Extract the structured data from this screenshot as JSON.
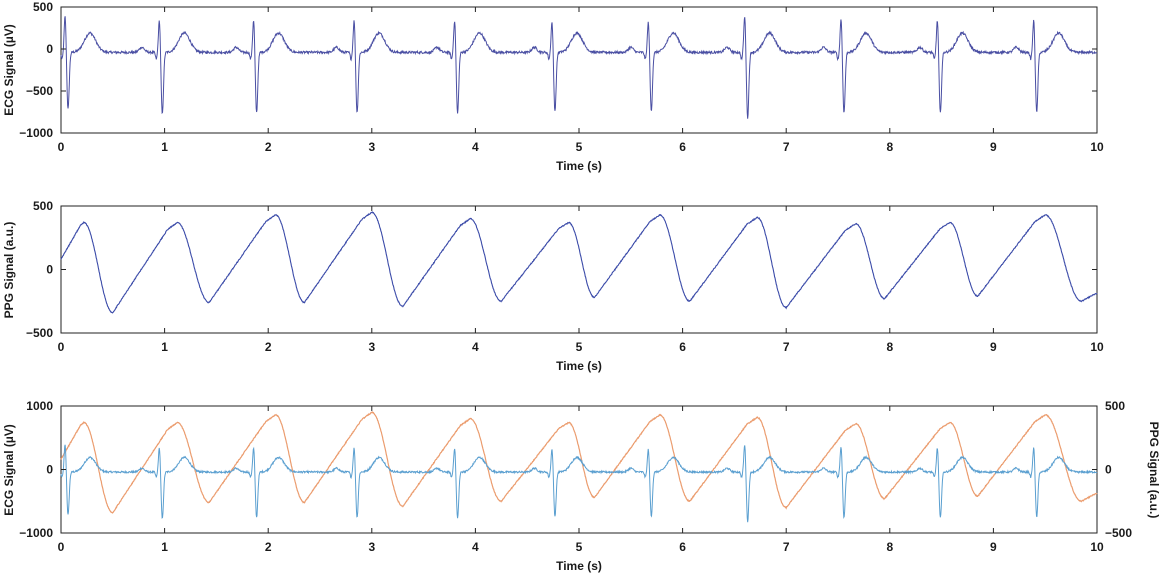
{
  "chart_data": [
    {
      "type": "line",
      "xlabel": "Time (s)",
      "ylabel": "ECG Signal (µV)",
      "xlim": [
        0,
        10
      ],
      "ylim": [
        -1000,
        500
      ],
      "xticks": [
        0,
        1,
        2,
        3,
        4,
        5,
        6,
        7,
        8,
        9,
        10
      ],
      "yticks": [
        500,
        0,
        -500,
        -1000
      ],
      "grid": false,
      "series": [
        {
          "color": "#4a4fa3",
          "r_peaks_s": [
            0.04,
            0.95,
            1.86,
            2.83,
            3.8,
            4.74,
            5.67,
            6.6,
            7.53,
            8.46,
            9.39
          ],
          "r_amplitude_uV": [
            450,
            400,
            400,
            400,
            400,
            380,
            380,
            450,
            420,
            400,
            400
          ],
          "s_amplitude_uV": [
            -680,
            -740,
            -720,
            -720,
            -730,
            -700,
            -700,
            -780,
            -720,
            -730,
            -720
          ],
          "t_wave_amplitude_uV": 230,
          "baseline_uV": -40
        }
      ]
    },
    {
      "type": "line",
      "xlabel": "Time (s)",
      "ylabel": "PPG Signal (a.u.)",
      "xlim": [
        0,
        10
      ],
      "ylim": [
        -500,
        500
      ],
      "xticks": [
        0,
        1,
        2,
        3,
        4,
        5,
        6,
        7,
        8,
        9,
        10
      ],
      "yticks": [
        500,
        0,
        -500
      ],
      "grid": false,
      "series": [
        {
          "color": "#3a4aa8",
          "peaks": [
            [
              0.22,
              370
            ],
            [
              1.12,
              370
            ],
            [
              2.07,
              430
            ],
            [
              3.0,
              450
            ],
            [
              3.95,
              400
            ],
            [
              4.9,
              370
            ],
            [
              5.78,
              430
            ],
            [
              6.72,
              410
            ],
            [
              7.67,
              360
            ],
            [
              8.58,
              370
            ],
            [
              9.5,
              430
            ]
          ],
          "troughs": [
            [
              0.5,
              -340
            ],
            [
              1.43,
              -260
            ],
            [
              2.35,
              -260
            ],
            [
              3.3,
              -290
            ],
            [
              4.25,
              -250
            ],
            [
              5.15,
              -220
            ],
            [
              6.07,
              -250
            ],
            [
              7.0,
              -300
            ],
            [
              7.95,
              -230
            ],
            [
              8.85,
              -210
            ],
            [
              9.85,
              -250
            ]
          ],
          "start_value": 80,
          "end_value": -190
        }
      ]
    },
    {
      "type": "line",
      "xlabel": "Time (s)",
      "ylabel": "ECG Signal (µV)",
      "ylabel_right": "PPG Signal (a.u.)",
      "xlim": [
        0,
        10
      ],
      "ylim": [
        -1000,
        1000
      ],
      "ylim_right": [
        -500,
        500
      ],
      "xticks": [
        0,
        1,
        2,
        3,
        4,
        5,
        6,
        7,
        8,
        9,
        10
      ],
      "yticks": [
        1000,
        0,
        -1000
      ],
      "yticks_right": [
        500,
        0,
        -500
      ],
      "left_axis_color": "#1f6fb2",
      "right_axis_color": "#e8872f",
      "grid": false,
      "series": [
        {
          "signal": "ECG",
          "axis": "left",
          "color": "#5a9fd0"
        },
        {
          "signal": "PPG",
          "axis": "right",
          "color": "#eb9c6e"
        }
      ]
    }
  ]
}
